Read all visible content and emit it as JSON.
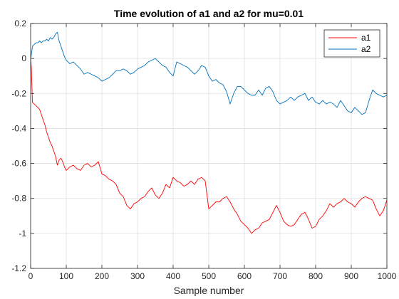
{
  "chart_data": {
    "type": "line",
    "title": "Time evolution of a1 and a2 for mu=0.01",
    "xlabel": "Sample number",
    "ylabel": "",
    "xlim": [
      0,
      1000
    ],
    "ylim": [
      -1.2,
      0.2
    ],
    "xticks": [
      0,
      100,
      200,
      300,
      400,
      500,
      600,
      700,
      800,
      900,
      1000
    ],
    "yticks": [
      -1.2,
      -1,
      -0.8,
      -0.6,
      -0.4,
      -0.2,
      0,
      0.2
    ],
    "xtick_labels": [
      "0",
      "100",
      "200",
      "300",
      "400",
      "500",
      "600",
      "700",
      "800",
      "900",
      "1000"
    ],
    "ytick_labels": [
      "-1.2",
      "-1",
      "-0.8",
      "-0.6",
      "-0.4",
      "-0.2",
      "0",
      "0.2"
    ],
    "grid": true,
    "legend_position": "top-right",
    "series": [
      {
        "name": "a1",
        "color": "#ff0000",
        "x": [
          0,
          2,
          5,
          10,
          15,
          20,
          25,
          30,
          35,
          40,
          45,
          50,
          55,
          60,
          65,
          70,
          75,
          80,
          85,
          90,
          95,
          100,
          110,
          120,
          130,
          140,
          150,
          160,
          170,
          180,
          190,
          200,
          210,
          220,
          230,
          240,
          250,
          260,
          270,
          280,
          290,
          300,
          310,
          320,
          330,
          340,
          350,
          360,
          370,
          380,
          390,
          400,
          410,
          420,
          430,
          440,
          450,
          460,
          470,
          480,
          490,
          500,
          510,
          520,
          530,
          540,
          550,
          560,
          570,
          580,
          590,
          600,
          610,
          620,
          630,
          640,
          650,
          660,
          670,
          680,
          690,
          700,
          710,
          720,
          730,
          740,
          750,
          760,
          770,
          780,
          790,
          800,
          810,
          820,
          830,
          840,
          850,
          860,
          870,
          880,
          890,
          900,
          910,
          920,
          930,
          940,
          950,
          960,
          970,
          980,
          990,
          1000
        ],
        "y": [
          0.0,
          -0.05,
          -0.25,
          -0.26,
          -0.27,
          -0.28,
          -0.29,
          -0.32,
          -0.35,
          -0.38,
          -0.42,
          -0.45,
          -0.48,
          -0.5,
          -0.53,
          -0.56,
          -0.61,
          -0.58,
          -0.57,
          -0.59,
          -0.62,
          -0.64,
          -0.62,
          -0.61,
          -0.63,
          -0.64,
          -0.61,
          -0.6,
          -0.62,
          -0.61,
          -0.59,
          -0.66,
          -0.67,
          -0.69,
          -0.7,
          -0.72,
          -0.77,
          -0.79,
          -0.84,
          -0.86,
          -0.83,
          -0.82,
          -0.8,
          -0.79,
          -0.76,
          -0.74,
          -0.78,
          -0.8,
          -0.77,
          -0.72,
          -0.74,
          -0.68,
          -0.7,
          -0.71,
          -0.73,
          -0.72,
          -0.7,
          -0.72,
          -0.69,
          -0.68,
          -0.7,
          -0.86,
          -0.84,
          -0.82,
          -0.82,
          -0.8,
          -0.79,
          -0.82,
          -0.86,
          -0.89,
          -0.93,
          -0.95,
          -0.97,
          -1.0,
          -0.98,
          -0.97,
          -0.94,
          -0.93,
          -0.92,
          -0.88,
          -0.84,
          -0.88,
          -0.93,
          -0.95,
          -0.96,
          -0.95,
          -0.92,
          -0.89,
          -0.88,
          -0.92,
          -0.97,
          -0.96,
          -0.92,
          -0.9,
          -0.87,
          -0.83,
          -0.85,
          -0.83,
          -0.82,
          -0.8,
          -0.82,
          -0.83,
          -0.85,
          -0.82,
          -0.8,
          -0.79,
          -0.8,
          -0.81,
          -0.86,
          -0.9,
          -0.87,
          -0.81
        ]
      },
      {
        "name": "a2",
        "color": "#0072bd",
        "x": [
          0,
          2,
          5,
          10,
          15,
          20,
          25,
          30,
          35,
          40,
          45,
          50,
          55,
          60,
          65,
          70,
          75,
          80,
          85,
          90,
          95,
          100,
          110,
          120,
          130,
          140,
          150,
          160,
          170,
          180,
          190,
          200,
          210,
          220,
          230,
          240,
          250,
          260,
          270,
          280,
          290,
          300,
          310,
          320,
          330,
          340,
          350,
          360,
          370,
          380,
          390,
          400,
          410,
          420,
          430,
          440,
          450,
          460,
          470,
          480,
          490,
          500,
          510,
          520,
          530,
          540,
          550,
          560,
          570,
          580,
          590,
          600,
          610,
          620,
          630,
          640,
          650,
          660,
          670,
          680,
          690,
          700,
          710,
          720,
          730,
          740,
          750,
          760,
          770,
          780,
          790,
          800,
          810,
          820,
          830,
          840,
          850,
          860,
          870,
          880,
          890,
          900,
          910,
          920,
          930,
          940,
          950,
          960,
          970,
          980,
          990,
          1000
        ],
        "y": [
          0.0,
          0.02,
          0.07,
          0.08,
          0.09,
          0.09,
          0.1,
          0.09,
          0.1,
          0.1,
          0.11,
          0.1,
          0.12,
          0.11,
          0.12,
          0.14,
          0.15,
          0.1,
          0.07,
          0.04,
          0.01,
          -0.01,
          -0.03,
          -0.02,
          -0.04,
          -0.06,
          -0.09,
          -0.08,
          -0.09,
          -0.1,
          -0.11,
          -0.13,
          -0.12,
          -0.11,
          -0.09,
          -0.07,
          -0.07,
          -0.06,
          -0.07,
          -0.09,
          -0.08,
          -0.06,
          -0.05,
          -0.04,
          -0.02,
          -0.01,
          0.0,
          -0.02,
          -0.04,
          -0.05,
          -0.08,
          -0.1,
          -0.02,
          -0.03,
          -0.04,
          -0.05,
          -0.07,
          -0.09,
          -0.07,
          -0.04,
          -0.05,
          -0.1,
          -0.13,
          -0.12,
          -0.14,
          -0.15,
          -0.19,
          -0.26,
          -0.2,
          -0.16,
          -0.16,
          -0.18,
          -0.2,
          -0.21,
          -0.21,
          -0.18,
          -0.21,
          -0.17,
          -0.16,
          -0.19,
          -0.24,
          -0.26,
          -0.25,
          -0.24,
          -0.22,
          -0.24,
          -0.22,
          -0.21,
          -0.2,
          -0.24,
          -0.22,
          -0.25,
          -0.26,
          -0.24,
          -0.26,
          -0.25,
          -0.26,
          -0.28,
          -0.24,
          -0.27,
          -0.3,
          -0.31,
          -0.28,
          -0.3,
          -0.32,
          -0.31,
          -0.24,
          -0.18,
          -0.2,
          -0.21,
          -0.22,
          -0.21
        ]
      }
    ]
  }
}
